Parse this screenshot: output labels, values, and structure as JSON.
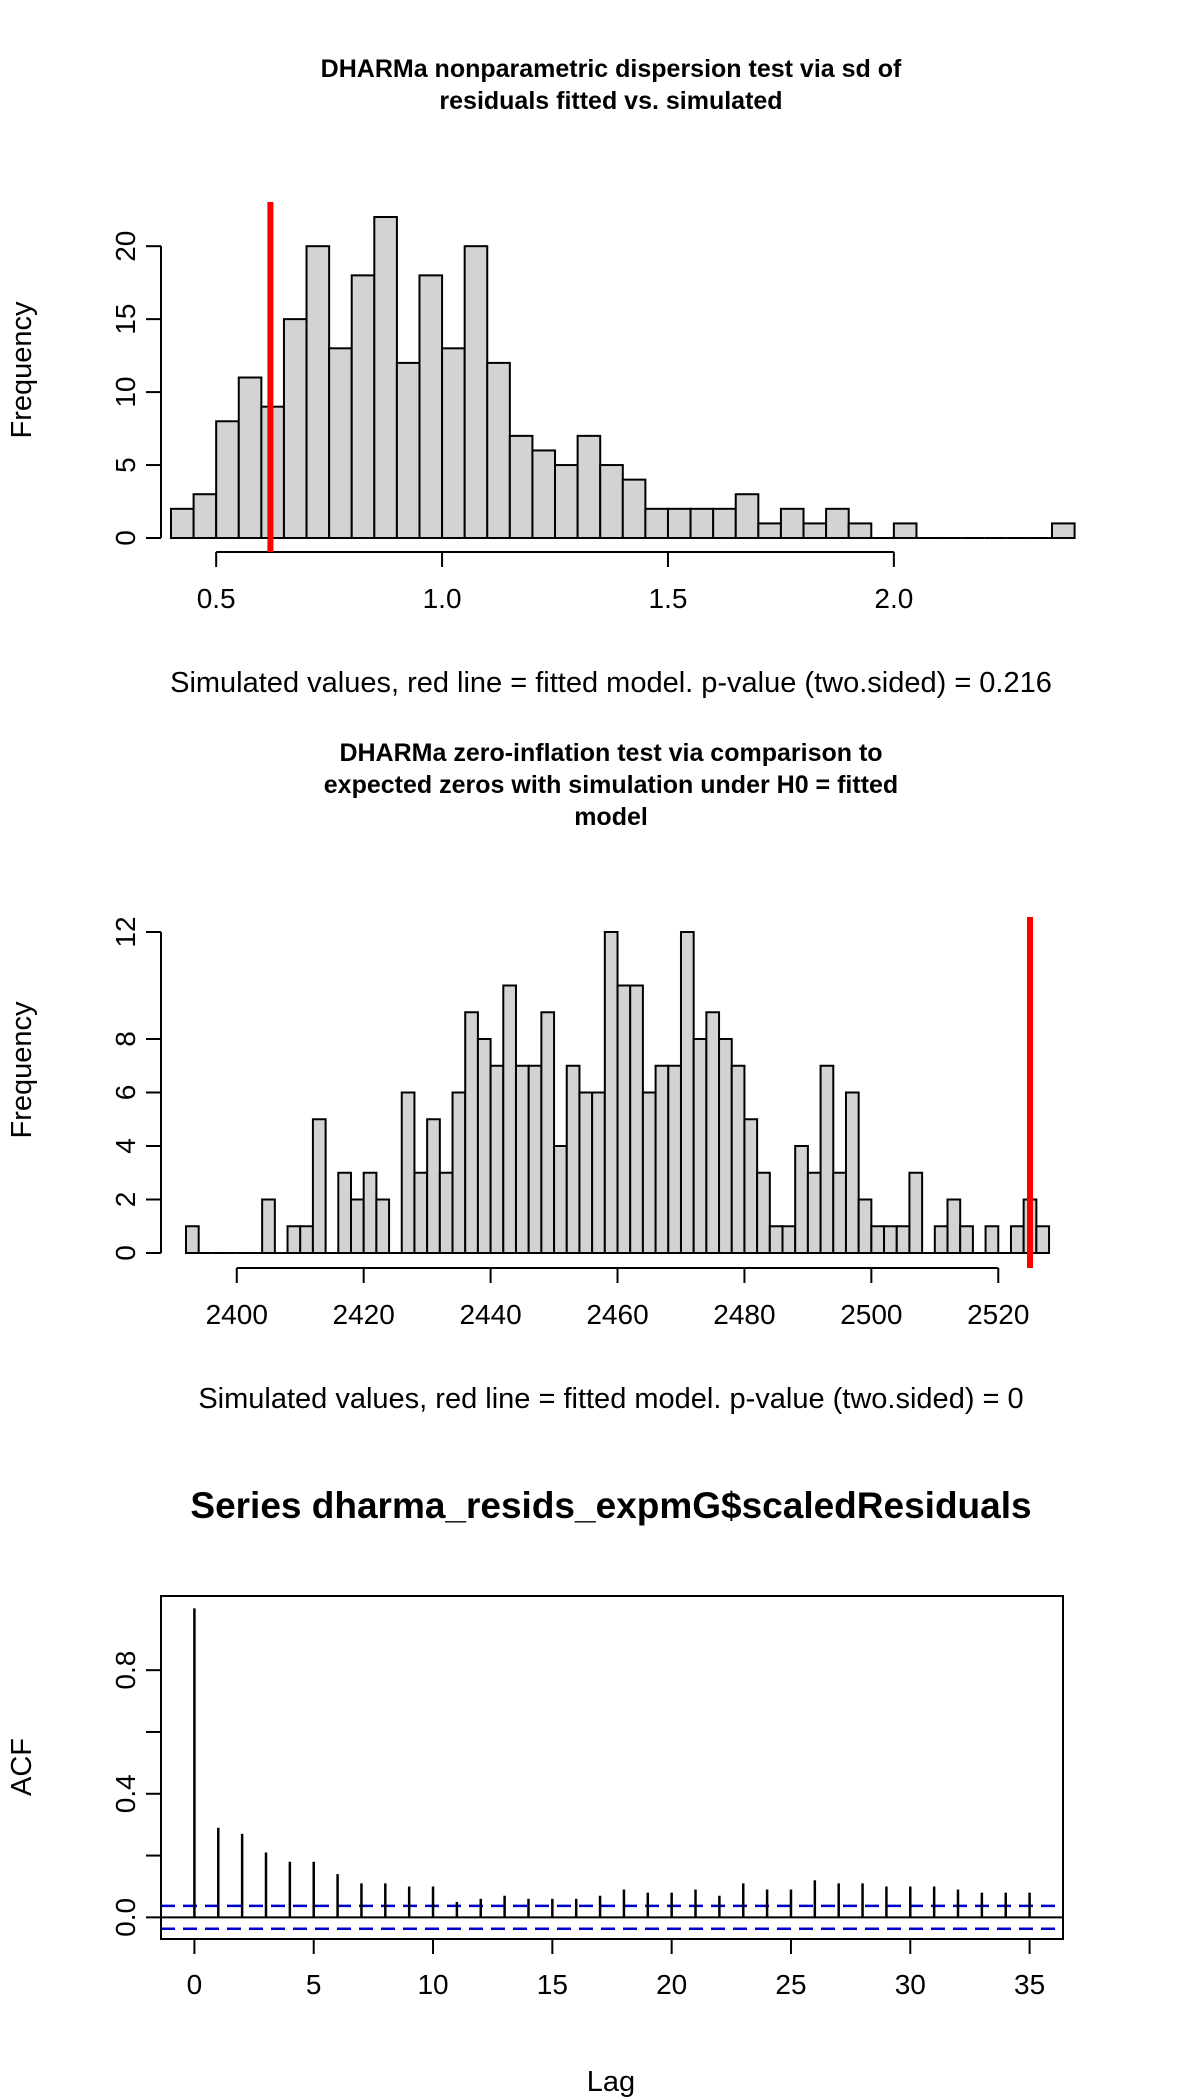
{
  "chart_data": [
    {
      "type": "bar",
      "subtype": "histogram",
      "title_lines": [
        "DHARMa nonparametric dispersion test via sd of",
        "residuals fitted vs. simulated"
      ],
      "xlabel": "Simulated values, red line = fitted model. p-value (two.sided) = 0.216",
      "ylabel": "Frequency",
      "bin_start": 0.4,
      "bin_width": 0.05,
      "counts": [
        2,
        3,
        8,
        11,
        9,
        15,
        20,
        13,
        18,
        22,
        12,
        18,
        13,
        20,
        12,
        7,
        6,
        5,
        7,
        5,
        4,
        2,
        2,
        2,
        2,
        3,
        1,
        2,
        1,
        2,
        1,
        0,
        1,
        0,
        0,
        0,
        0,
        0,
        0,
        1
      ],
      "fitted_value": 0.62,
      "xticks": [
        "0.5",
        "1.0",
        "1.5",
        "2.0"
      ],
      "xtick_values": [
        0.5,
        1.0,
        1.5,
        2.0
      ],
      "yticks": [
        "0",
        "5",
        "10",
        "15",
        "20"
      ],
      "ytick_values": [
        0,
        5,
        10,
        15,
        20
      ],
      "xlim": [
        0.4,
        2.35
      ],
      "ylim": [
        0,
        22
      ]
    },
    {
      "type": "bar",
      "subtype": "histogram",
      "title_lines": [
        "DHARMa zero-inflation test via comparison to",
        "expected zeros with simulation under H0 = fitted",
        "model"
      ],
      "xlabel": "Simulated values, red line = fitted model. p-value (two.sided) = 0",
      "ylabel": "Frequency",
      "bin_start": 2392,
      "bin_width": 2,
      "counts": [
        1,
        0,
        0,
        0,
        0,
        0,
        2,
        0,
        1,
        1,
        5,
        0,
        3,
        2,
        3,
        2,
        0,
        6,
        3,
        5,
        3,
        6,
        9,
        8,
        7,
        10,
        7,
        7,
        9,
        4,
        7,
        6,
        6,
        12,
        10,
        10,
        6,
        7,
        7,
        12,
        8,
        9,
        8,
        7,
        5,
        3,
        1,
        1,
        4,
        3,
        7,
        3,
        6,
        2,
        1,
        1,
        1,
        3,
        0,
        1,
        2,
        1,
        0,
        1,
        0,
        1,
        2,
        1
      ],
      "fitted_value": 2525,
      "xticks": [
        "2400",
        "2420",
        "2440",
        "2460",
        "2480",
        "2500",
        "2520"
      ],
      "xtick_values": [
        2400,
        2420,
        2440,
        2460,
        2480,
        2500,
        2520
      ],
      "yticks": [
        "0",
        "2",
        "4",
        "6",
        "8",
        "12"
      ],
      "ytick_values": [
        0,
        2,
        4,
        6,
        8,
        12
      ],
      "xlim": [
        2392,
        2525
      ],
      "ylim": [
        0,
        12
      ]
    },
    {
      "type": "bar",
      "subtype": "acf",
      "title": "Series  dharma_resids_expmG$scaledResiduals",
      "xlabel": "Lag",
      "ylabel": "ACF",
      "lags": [
        0,
        1,
        2,
        3,
        4,
        5,
        6,
        7,
        8,
        9,
        10,
        11,
        12,
        13,
        14,
        15,
        16,
        17,
        18,
        19,
        20,
        21,
        22,
        23,
        24,
        25,
        26,
        27,
        28,
        29,
        30,
        31,
        32,
        33,
        34,
        35
      ],
      "values": [
        1.0,
        0.29,
        0.27,
        0.21,
        0.18,
        0.18,
        0.14,
        0.11,
        0.11,
        0.1,
        0.1,
        0.05,
        0.06,
        0.07,
        0.06,
        0.06,
        0.06,
        0.07,
        0.09,
        0.08,
        0.08,
        0.09,
        0.07,
        0.11,
        0.09,
        0.09,
        0.12,
        0.11,
        0.11,
        0.1,
        0.1,
        0.1,
        0.09,
        0.08,
        0.08,
        0.08
      ],
      "ci": 0.037,
      "xticks": [
        "0",
        "5",
        "10",
        "15",
        "20",
        "25",
        "30",
        "35"
      ],
      "xtick_values": [
        0,
        5,
        10,
        15,
        20,
        25,
        30,
        35
      ],
      "yticks": [
        "0.0",
        "0.4",
        "0.8"
      ],
      "ytick_values": [
        0.0,
        0.4,
        0.8
      ],
      "xlim": [
        -1.4,
        36.4
      ],
      "ylim": [
        -0.07,
        1.04
      ]
    }
  ]
}
